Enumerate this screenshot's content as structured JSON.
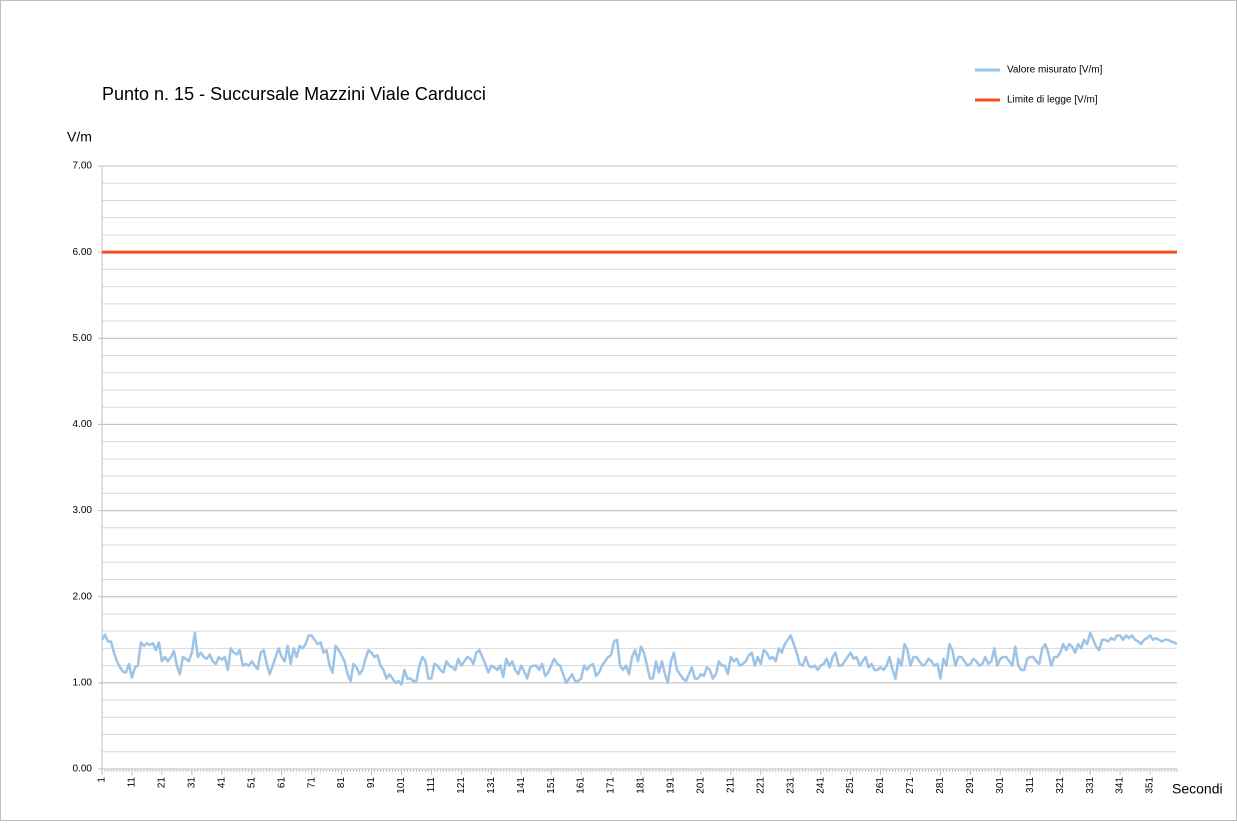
{
  "chart_data": {
    "type": "line",
    "title": "Punto n. 15 - Succursale Mazzini Viale Carducci",
    "y_axis_label": "V/m",
    "x_axis_label": "Secondi",
    "x": [
      1,
      2,
      3,
      4,
      5,
      6,
      7,
      8,
      9,
      10,
      11,
      12,
      13,
      14,
      15,
      16,
      17,
      18,
      19,
      20,
      21,
      22,
      23,
      24,
      25,
      26,
      27,
      28,
      29,
      30,
      31,
      32,
      33,
      34,
      35,
      36,
      37,
      38,
      39,
      40,
      41,
      42,
      43,
      44,
      45,
      46,
      47,
      48,
      49,
      50,
      51,
      52,
      53,
      54,
      55,
      56,
      57,
      58,
      59,
      60,
      61,
      62,
      63,
      64,
      65,
      66,
      67,
      68,
      69,
      70,
      71,
      72,
      73,
      74,
      75,
      76,
      77,
      78,
      79,
      80,
      81,
      82,
      83,
      84,
      85,
      86,
      87,
      88,
      89,
      90,
      91,
      92,
      93,
      94,
      95,
      96,
      97,
      98,
      99,
      100,
      101,
      102,
      103,
      104,
      105,
      106,
      107,
      108,
      109,
      110,
      111,
      112,
      113,
      114,
      115,
      116,
      117,
      118,
      119,
      120,
      121,
      122,
      123,
      124,
      125,
      126,
      127,
      128,
      129,
      130,
      131,
      132,
      133,
      134,
      135,
      136,
      137,
      138,
      139,
      140,
      141,
      142,
      143,
      144,
      145,
      146,
      147,
      148,
      149,
      150,
      151,
      152,
      153,
      154,
      155,
      156,
      157,
      158,
      159,
      160,
      161,
      162,
      163,
      164,
      165,
      166,
      167,
      168,
      169,
      170,
      171,
      172,
      173,
      174,
      175,
      176,
      177,
      178,
      179,
      180,
      181,
      182,
      183,
      184,
      185,
      186,
      187,
      188,
      189,
      190,
      191,
      192,
      193,
      194,
      195,
      196,
      197,
      198,
      199,
      200,
      201,
      202,
      203,
      204,
      205,
      206,
      207,
      208,
      209,
      210,
      211,
      212,
      213,
      214,
      215,
      216,
      217,
      218,
      219,
      220,
      221,
      222,
      223,
      224,
      225,
      226,
      227,
      228,
      229,
      230,
      231,
      232,
      233,
      234,
      235,
      236,
      237,
      238,
      239,
      240,
      241,
      242,
      243,
      244,
      245,
      246,
      247,
      248,
      249,
      250,
      251,
      252,
      253,
      254,
      255,
      256,
      257,
      258,
      259,
      260,
      261,
      262,
      263,
      264,
      265,
      266,
      267,
      268,
      269,
      270,
      271,
      272,
      273,
      274,
      275,
      276,
      277,
      278,
      279,
      280,
      281,
      282,
      283,
      284,
      285,
      286,
      287,
      288,
      289,
      290,
      291,
      292,
      293,
      294,
      295,
      296,
      297,
      298,
      299,
      300,
      301,
      302,
      303,
      304,
      305,
      306,
      307,
      308,
      309,
      310,
      311,
      312,
      313,
      314,
      315,
      316,
      317,
      318,
      319,
      320,
      321,
      322,
      323,
      324,
      325,
      326,
      327,
      328,
      329,
      330,
      331,
      332,
      333,
      334,
      335,
      336,
      337,
      338,
      339,
      340,
      341,
      342,
      343,
      344,
      345,
      346,
      347,
      348,
      349,
      350,
      351,
      352,
      353,
      354,
      355,
      356,
      357,
      358,
      359,
      360
    ],
    "series": [
      {
        "name": "Valore misurato [V/m]",
        "color": "#9dc3e6",
        "values": [
          1.5,
          1.56,
          1.48,
          1.48,
          1.35,
          1.25,
          1.18,
          1.13,
          1.12,
          1.22,
          1.06,
          1.18,
          1.2,
          1.47,
          1.43,
          1.46,
          1.44,
          1.46,
          1.38,
          1.47,
          1.25,
          1.3,
          1.25,
          1.3,
          1.37,
          1.2,
          1.1,
          1.3,
          1.28,
          1.25,
          1.35,
          1.58,
          1.3,
          1.35,
          1.3,
          1.28,
          1.33,
          1.25,
          1.22,
          1.3,
          1.27,
          1.3,
          1.15,
          1.4,
          1.35,
          1.33,
          1.38,
          1.2,
          1.22,
          1.2,
          1.25,
          1.2,
          1.16,
          1.35,
          1.38,
          1.22,
          1.1,
          1.2,
          1.3,
          1.4,
          1.3,
          1.25,
          1.43,
          1.22,
          1.4,
          1.3,
          1.43,
          1.4,
          1.45,
          1.55,
          1.55,
          1.5,
          1.45,
          1.47,
          1.35,
          1.38,
          1.2,
          1.12,
          1.43,
          1.38,
          1.32,
          1.25,
          1.1,
          1.02,
          1.22,
          1.18,
          1.1,
          1.15,
          1.28,
          1.38,
          1.35,
          1.3,
          1.32,
          1.2,
          1.15,
          1.05,
          1.1,
          1.05,
          1.0,
          1.02,
          0.98,
          1.15,
          1.05,
          1.05,
          1.02,
          1.02,
          1.2,
          1.3,
          1.25,
          1.05,
          1.05,
          1.22,
          1.2,
          1.15,
          1.12,
          1.25,
          1.2,
          1.18,
          1.15,
          1.28,
          1.2,
          1.25,
          1.3,
          1.28,
          1.22,
          1.35,
          1.38,
          1.3,
          1.22,
          1.12,
          1.2,
          1.18,
          1.15,
          1.2,
          1.07,
          1.28,
          1.2,
          1.25,
          1.15,
          1.1,
          1.2,
          1.13,
          1.05,
          1.18,
          1.2,
          1.2,
          1.15,
          1.22,
          1.08,
          1.12,
          1.2,
          1.28,
          1.22,
          1.2,
          1.1,
          1.0,
          1.05,
          1.1,
          1.02,
          1.02,
          1.05,
          1.2,
          1.15,
          1.2,
          1.22,
          1.08,
          1.12,
          1.2,
          1.25,
          1.3,
          1.32,
          1.48,
          1.5,
          1.2,
          1.15,
          1.2,
          1.1,
          1.3,
          1.38,
          1.25,
          1.42,
          1.35,
          1.2,
          1.05,
          1.05,
          1.25,
          1.12,
          1.25,
          1.1,
          1.0,
          1.25,
          1.35,
          1.15,
          1.1,
          1.05,
          1.02,
          1.1,
          1.18,
          1.05,
          1.05,
          1.1,
          1.08,
          1.18,
          1.15,
          1.05,
          1.1,
          1.25,
          1.2,
          1.2,
          1.1,
          1.3,
          1.25,
          1.28,
          1.2,
          1.22,
          1.25,
          1.32,
          1.35,
          1.2,
          1.3,
          1.22,
          1.38,
          1.35,
          1.28,
          1.3,
          1.25,
          1.4,
          1.35,
          1.45,
          1.5,
          1.55,
          1.45,
          1.35,
          1.22,
          1.2,
          1.3,
          1.2,
          1.18,
          1.2,
          1.15,
          1.2,
          1.22,
          1.28,
          1.18,
          1.3,
          1.35,
          1.2,
          1.2,
          1.25,
          1.3,
          1.35,
          1.28,
          1.3,
          1.2,
          1.25,
          1.3,
          1.18,
          1.22,
          1.15,
          1.15,
          1.18,
          1.15,
          1.2,
          1.3,
          1.15,
          1.05,
          1.28,
          1.2,
          1.45,
          1.38,
          1.2,
          1.3,
          1.3,
          1.25,
          1.2,
          1.22,
          1.28,
          1.25,
          1.2,
          1.22,
          1.05,
          1.28,
          1.2,
          1.45,
          1.38,
          1.2,
          1.3,
          1.3,
          1.25,
          1.2,
          1.22,
          1.28,
          1.25,
          1.2,
          1.22,
          1.3,
          1.22,
          1.25,
          1.4,
          1.2,
          1.28,
          1.3,
          1.3,
          1.25,
          1.2,
          1.42,
          1.2,
          1.15,
          1.15,
          1.28,
          1.3,
          1.3,
          1.25,
          1.22,
          1.4,
          1.45,
          1.35,
          1.2,
          1.3,
          1.3,
          1.35,
          1.45,
          1.38,
          1.45,
          1.42,
          1.35,
          1.45,
          1.4,
          1.5,
          1.45,
          1.58,
          1.5,
          1.42,
          1.38,
          1.5,
          1.5,
          1.48,
          1.52,
          1.5,
          1.55,
          1.55,
          1.5,
          1.55,
          1.52,
          1.55,
          1.5,
          1.48,
          1.45,
          1.5,
          1.52,
          1.55,
          1.5,
          1.52,
          1.5,
          1.48,
          1.5,
          1.5,
          1.48,
          1.47,
          1.45
        ]
      }
    ],
    "reference_lines": [
      {
        "name": "Limite di legge [V/m]",
        "color": "#f4511e",
        "value": 6
      }
    ],
    "xlim": [
      1,
      360
    ],
    "xticks": [
      1,
      11,
      21,
      31,
      41,
      51,
      61,
      71,
      81,
      91,
      101,
      111,
      121,
      131,
      141,
      151,
      161,
      171,
      181,
      191,
      201,
      211,
      221,
      231,
      241,
      251,
      261,
      271,
      281,
      291,
      301,
      311,
      321,
      331,
      341,
      351
    ],
    "ylim": [
      0,
      7
    ],
    "yticks": [
      {
        "value": 0,
        "label": "0.00"
      },
      {
        "value": 1,
        "label": "1.00"
      },
      {
        "value": 2,
        "label": "2.00"
      },
      {
        "value": 3,
        "label": "3.00"
      },
      {
        "value": 4,
        "label": "4.00"
      },
      {
        "value": 5,
        "label": "5.00"
      },
      {
        "value": 6,
        "label": "6.00"
      },
      {
        "value": 7,
        "label": "7.00"
      }
    ],
    "minor_grid_step": 0.2,
    "grid": true,
    "legend": "top-right"
  }
}
